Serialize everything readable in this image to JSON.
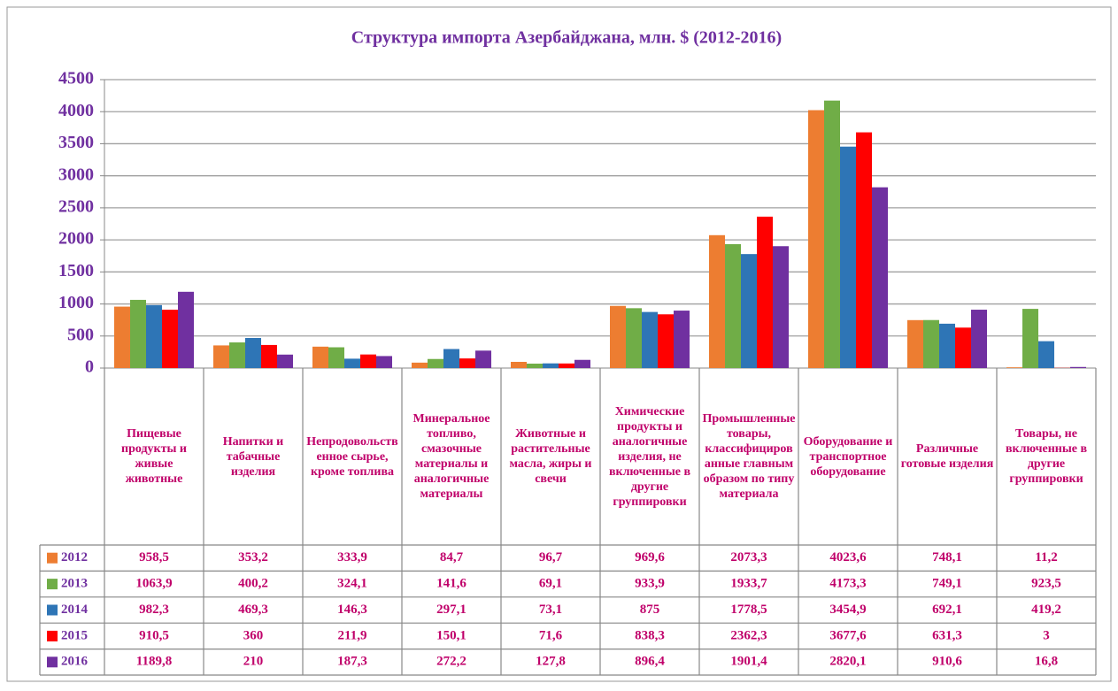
{
  "chart_data": {
    "type": "bar",
    "title": "Структура импорта Азербайджана, млн. $ (2012-2016)",
    "categories": [
      "Пищевые продукты и живые животные",
      "Напитки и табачные изделия",
      "Непродовольственное сырье, кроме топлива",
      "Минеральное топливо, смазочные материалы и аналогичные материалы",
      "Животные и растительные масла, жиры и свечи",
      "Химические продукты и аналогичные изделия, не включенные в другие группировки",
      "Промышленные товары, классифицированные главным образом по типу материала",
      "Оборудование и транспортное оборудование",
      "Различные готовые изделия",
      "Товары, не включенные в другие группировки"
    ],
    "series": [
      {
        "name": "2012",
        "color": "#ed7d31",
        "values": [
          958.5,
          353.2,
          333.9,
          84.7,
          96.7,
          969.6,
          2073.3,
          4023.6,
          748.1,
          11.2
        ],
        "value_labels": [
          "958,5",
          "353,2",
          "333,9",
          "84,7",
          "96,7",
          "969,6",
          "2073,3",
          "4023,6",
          "748,1",
          "11,2"
        ]
      },
      {
        "name": "2013",
        "color": "#70ad47",
        "values": [
          1063.9,
          400.2,
          324.1,
          141.6,
          69.1,
          933.9,
          1933.7,
          4173.3,
          749.1,
          923.5
        ],
        "value_labels": [
          "1063,9",
          "400,2",
          "324,1",
          "141,6",
          "69,1",
          "933,9",
          "1933,7",
          "4173,3",
          "749,1",
          "923,5"
        ]
      },
      {
        "name": "2014",
        "color": "#2e75b6",
        "values": [
          982.3,
          469.3,
          146.3,
          297.1,
          73.1,
          875,
          1778.5,
          3454.9,
          692.1,
          419.2
        ],
        "value_labels": [
          "982,3",
          "469,3",
          "146,3",
          "297,1",
          "73,1",
          "875",
          "1778,5",
          "3454,9",
          "692,1",
          "419,2"
        ]
      },
      {
        "name": "2015",
        "color": "#ff0000",
        "values": [
          910.5,
          360,
          211.9,
          150.1,
          71.6,
          838.3,
          2362.3,
          3677.6,
          631.3,
          3
        ],
        "value_labels": [
          "910,5",
          "360",
          "211,9",
          "150,1",
          "71,6",
          "838,3",
          "2362,3",
          "3677,6",
          "631,3",
          "3"
        ]
      },
      {
        "name": "2016",
        "color": "#7030a0",
        "values": [
          1189.8,
          210,
          187.3,
          272.2,
          127.8,
          896.4,
          1901.4,
          2820.1,
          910.6,
          16.8
        ],
        "value_labels": [
          "1189,8",
          "210",
          "187,3",
          "272,2",
          "127,8",
          "896,4",
          "1901,4",
          "2820,1",
          "910,6",
          "16,8"
        ]
      }
    ],
    "ylim": [
      0,
      4500
    ],
    "yticks": [
      0,
      500,
      1000,
      1500,
      2000,
      2500,
      3000,
      3500,
      4000,
      4500
    ],
    "grid": true
  }
}
